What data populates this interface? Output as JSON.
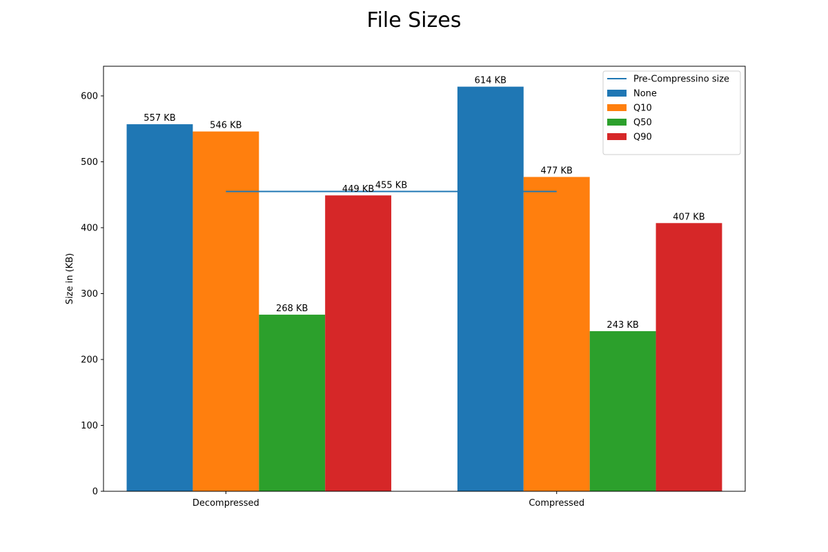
{
  "chart_data": {
    "type": "bar",
    "title": "File Sizes",
    "xlabel": "",
    "ylabel": "Size in (KB)",
    "ylim": [
      0,
      645
    ],
    "yticks": [
      0,
      100,
      200,
      300,
      400,
      500,
      600
    ],
    "categories": [
      "Decompressed",
      "Compressed"
    ],
    "series": [
      {
        "name": "None",
        "color": "#1f77b4",
        "values": [
          557,
          614
        ],
        "labels": [
          "557 KB",
          "614 KB"
        ]
      },
      {
        "name": "Q10",
        "color": "#ff7f0e",
        "values": [
          546,
          477
        ],
        "labels": [
          "546 KB",
          "477 KB"
        ]
      },
      {
        "name": "Q50",
        "color": "#2ca02c",
        "values": [
          268,
          243
        ],
        "labels": [
          "268 KB",
          "243 KB"
        ]
      },
      {
        "name": "Q90",
        "color": "#d62728",
        "values": [
          449,
          407
        ],
        "labels": [
          "449 KB",
          "407 KB"
        ]
      }
    ],
    "reference_line": {
      "name": "Pre-Compressino size",
      "value": 455,
      "label": "455 KB",
      "color": "#1f77b4"
    },
    "grid": false,
    "legend": "top-right"
  }
}
